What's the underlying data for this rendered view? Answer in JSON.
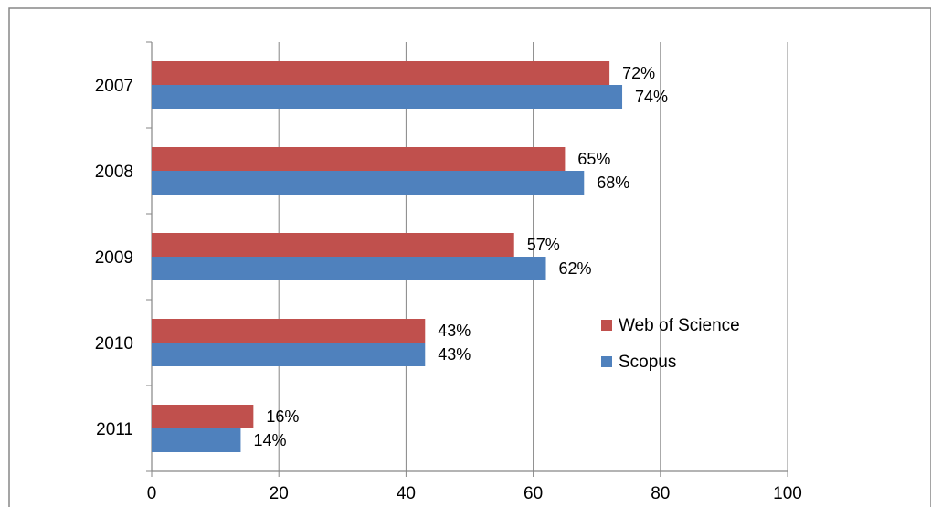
{
  "chart_data": {
    "type": "bar",
    "orientation": "horizontal",
    "categories": [
      "2007",
      "2008",
      "2009",
      "2010",
      "2011"
    ],
    "series": [
      {
        "name": "Web of Science",
        "values": [
          72,
          65,
          57,
          43,
          16
        ],
        "labels": [
          "72%",
          "65%",
          "57%",
          "43%",
          "16%"
        ],
        "color": "#C0504D"
      },
      {
        "name": "Scopus",
        "values": [
          74,
          68,
          62,
          43,
          14
        ],
        "labels": [
          "74%",
          "68%",
          "62%",
          "43%",
          "14%"
        ],
        "color": "#4F81BD"
      }
    ],
    "xlim": [
      0,
      100
    ],
    "xticks": [
      "0",
      "20",
      "40",
      "60",
      "80",
      "100"
    ],
    "grid": true,
    "legend_position": "right",
    "title": "",
    "xlabel": "",
    "ylabel": ""
  }
}
